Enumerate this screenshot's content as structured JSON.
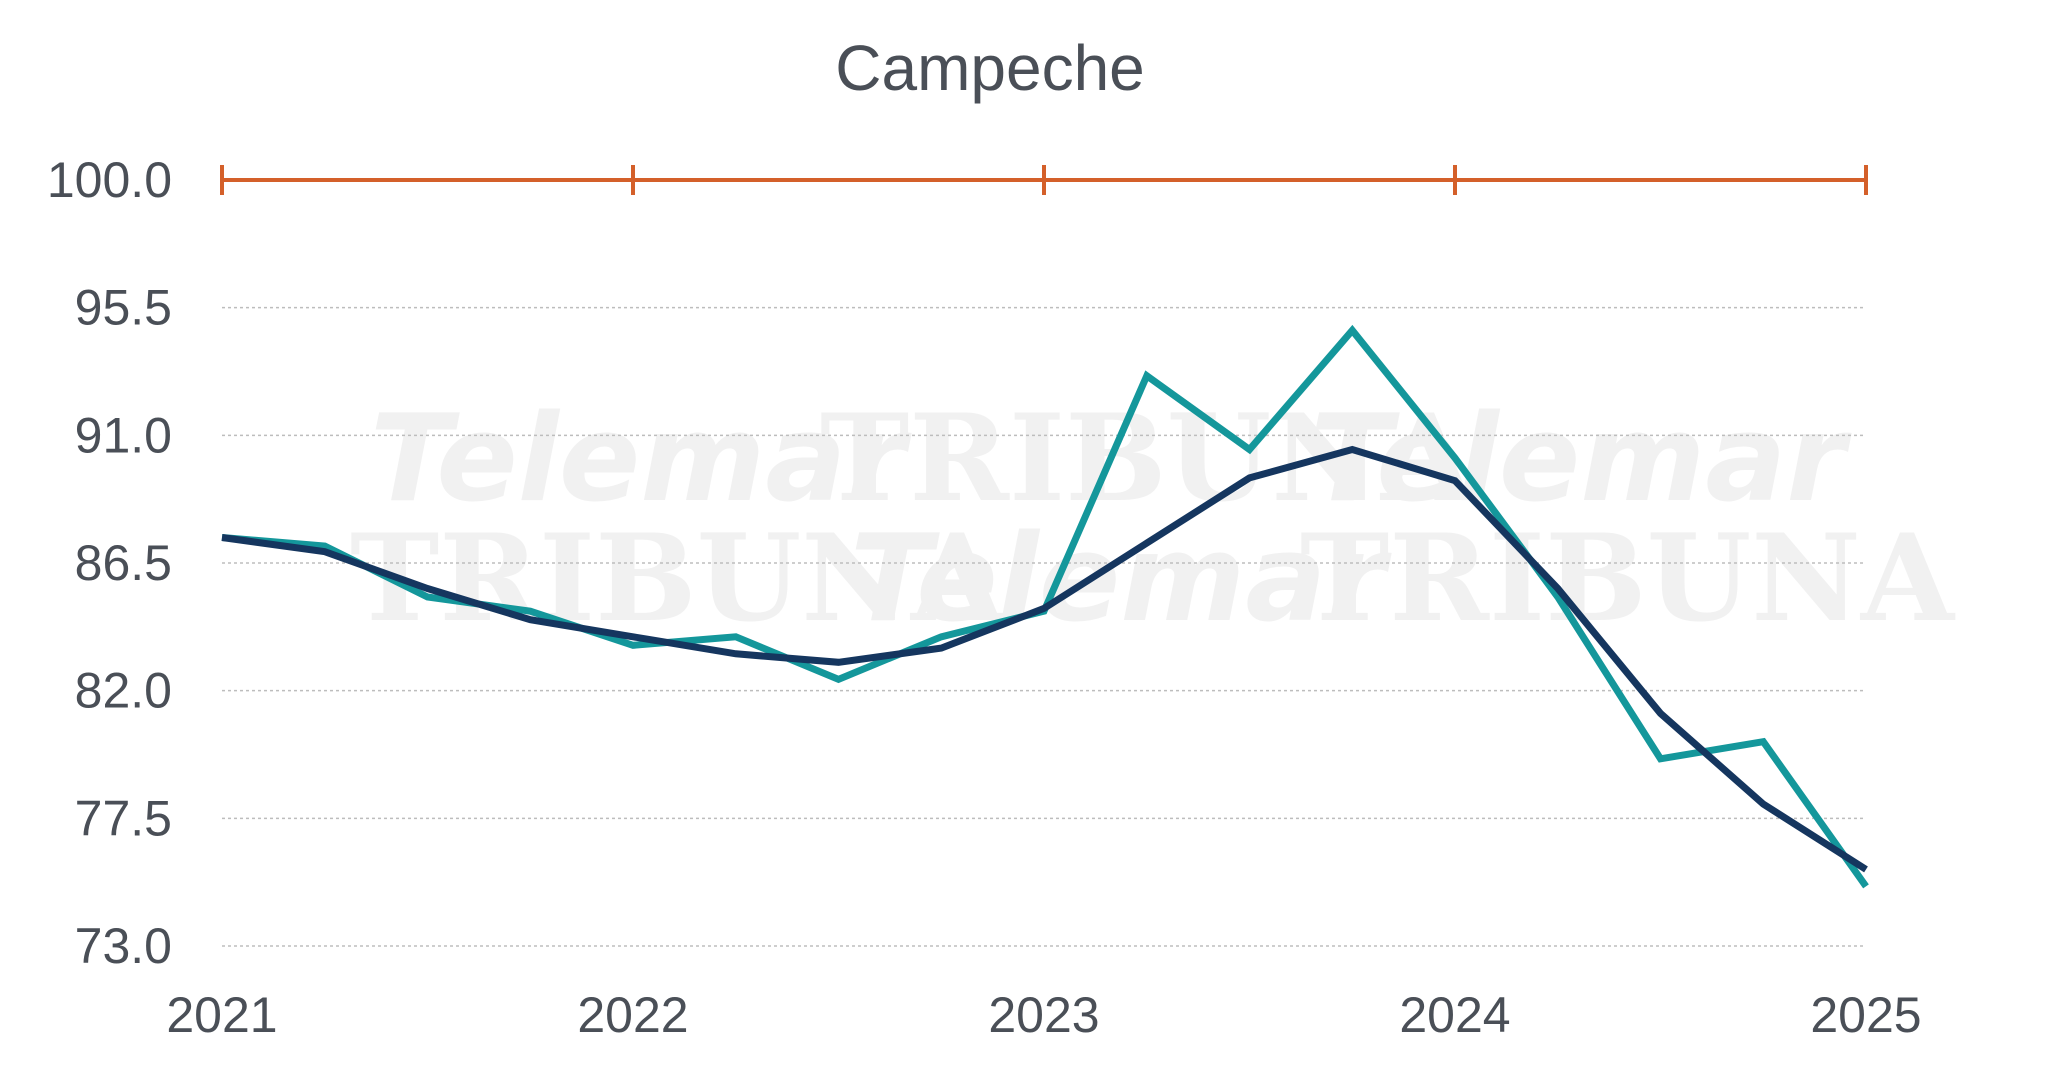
{
  "chart_data": {
    "type": "line",
    "title": "Campeche",
    "xlabel": "",
    "ylabel": "",
    "ylim": [
      73.0,
      100.0
    ],
    "yticks": [
      "73.0",
      "77.5",
      "82.0",
      "86.5",
      "91.0",
      "95.5",
      "100.0"
    ],
    "xlim": [
      2021,
      2025
    ],
    "xticks": [
      "2021",
      "2022",
      "2023",
      "2024",
      "2025"
    ],
    "grid": true,
    "reference_line": {
      "y": 100.0,
      "color": "#d4602a"
    },
    "watermark": [
      "Telemar",
      "TRIBUNA",
      "Telemar",
      "TRIBUNA",
      "Telemar",
      "TRIBUNA"
    ],
    "series": [
      {
        "color": "#14979b",
        "x": [
          2021.0,
          2021.25,
          2021.5,
          2021.75,
          2022.0,
          2022.25,
          2022.5,
          2022.75,
          2023.0,
          2023.25,
          2023.5,
          2023.75,
          2024.0,
          2024.25,
          2024.5,
          2024.75,
          2025.0
        ],
        "values": [
          87.4,
          87.1,
          85.3,
          84.8,
          83.6,
          83.9,
          82.4,
          83.9,
          84.8,
          93.1,
          90.5,
          94.7,
          90.2,
          85.3,
          79.6,
          80.2,
          75.1
        ]
      },
      {
        "color": "#15365f",
        "x": [
          2021.0,
          2021.25,
          2021.5,
          2021.75,
          2022.0,
          2022.25,
          2022.5,
          2022.75,
          2023.0,
          2023.25,
          2023.5,
          2023.75,
          2024.0,
          2024.25,
          2024.5,
          2024.75,
          2025.0
        ],
        "values": [
          87.4,
          86.9,
          85.6,
          84.5,
          83.9,
          83.3,
          83.0,
          83.5,
          84.9,
          87.2,
          89.5,
          90.5,
          89.4,
          85.6,
          81.2,
          78.0,
          75.7
        ]
      }
    ]
  }
}
